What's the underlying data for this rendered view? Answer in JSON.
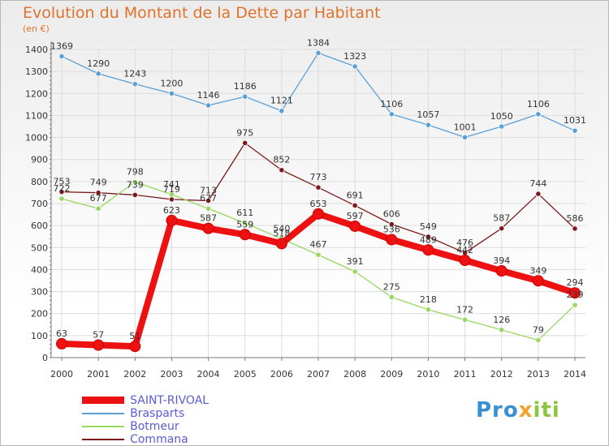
{
  "title": "Evolution du Montant de la Dette par Habitant",
  "unit_label": "(en €)",
  "logo": {
    "part1": "Pro",
    "part2": "x",
    "part3": "iti"
  },
  "chart_data": {
    "type": "line",
    "x": [
      "2000",
      "2001",
      "2002",
      "2003",
      "2004",
      "2005",
      "2006",
      "2007",
      "2008",
      "2009",
      "2010",
      "2011",
      "2012",
      "2013",
      "2014"
    ],
    "ylim": [
      0,
      1400
    ],
    "yticks": [
      0,
      100,
      200,
      300,
      400,
      500,
      600,
      700,
      800,
      900,
      1000,
      1100,
      1200,
      1300,
      1400
    ],
    "grid": true,
    "legend_position": "bottom-left",
    "series": [
      {
        "name": "Commana",
        "color": "#7b1a1a",
        "values": [
          753,
          749,
          739,
          719,
          713,
          975,
          852,
          773,
          691,
          606,
          549,
          476,
          587,
          744,
          586
        ]
      },
      {
        "name": "Botmeur",
        "color": "#96d860",
        "values": [
          722,
          677,
          798,
          741,
          677,
          611,
          540,
          467,
          391,
          275,
          218,
          172,
          126,
          79,
          239
        ]
      },
      {
        "name": "Brasparts",
        "color": "#5a9fd6",
        "values": [
          1369,
          1290,
          1243,
          1200,
          1146,
          1186,
          1121,
          1384,
          1323,
          1106,
          1057,
          1001,
          1050,
          1106,
          1031
        ]
      },
      {
        "name": "SAINT-RIVOAL",
        "color": "#ee1111",
        "values": [
          63,
          57,
          51,
          623,
          587,
          559,
          518,
          653,
          597,
          536,
          489,
          442,
          394,
          349,
          294
        ]
      }
    ]
  }
}
